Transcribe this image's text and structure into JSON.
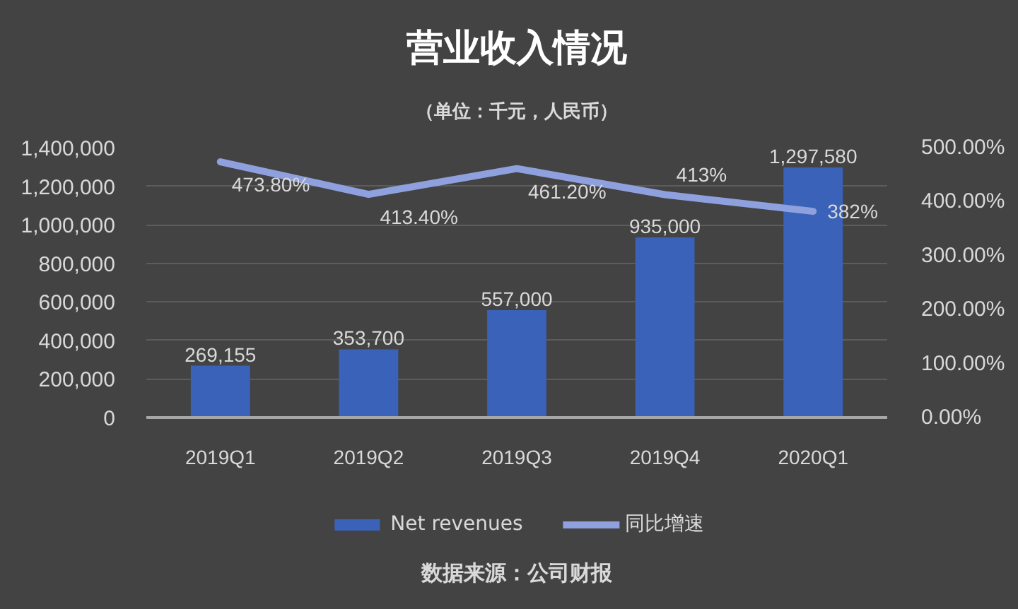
{
  "chart_data": {
    "type": "bar",
    "title": "营业收入情况",
    "subtitle": "（单位：千元，人民币）",
    "categories": [
      "2019Q1",
      "2019Q2",
      "2019Q3",
      "2019Q4",
      "2020Q1"
    ],
    "series": [
      {
        "name": "Net revenues",
        "color": "#3a62b8",
        "values": [
          269155,
          353700,
          557000,
          935000,
          1297580
        ],
        "value_labels": [
          "269,155",
          "353,700",
          "557,000",
          "935,000",
          "1,297,580"
        ]
      },
      {
        "name": "同比增速",
        "type": "line",
        "axis": "y2",
        "color": "#8fa0de",
        "values": [
          473.8,
          413.4,
          461.2,
          413,
          382
        ],
        "value_labels": [
          "473.80%",
          "413.40%",
          "461.20%",
          "413%",
          "382%"
        ]
      }
    ],
    "ylim": [
      0,
      1400000
    ],
    "yticks": [
      0,
      {
        "value": 200000,
        "label": "200,000"
      },
      {
        "value": 400000,
        "label": "400,000"
      },
      {
        "value": 600000,
        "label": "600,000"
      },
      {
        "value": 800000,
        "label": "800,000"
      },
      {
        "value": 1000000,
        "label": "1,000,000"
      },
      {
        "value": 1200000,
        "label": "1,200,000"
      },
      {
        "value": 1400000,
        "label": "1,400,000"
      }
    ],
    "y2lim": [
      0,
      500
    ],
    "y2ticks": [
      {
        "value": 0,
        "label": "0.00%"
      },
      {
        "value": 100,
        "label": "100.00%"
      },
      {
        "value": 200,
        "label": "200.00%"
      },
      {
        "value": 300,
        "label": "300.00%"
      },
      {
        "value": 400,
        "label": "400.00%"
      },
      {
        "value": 500,
        "label": "500.00%"
      }
    ],
    "grid": "y",
    "legend": "bottom",
    "line_style": "solid",
    "annotations": [
      "数据来源：公司财报"
    ]
  }
}
